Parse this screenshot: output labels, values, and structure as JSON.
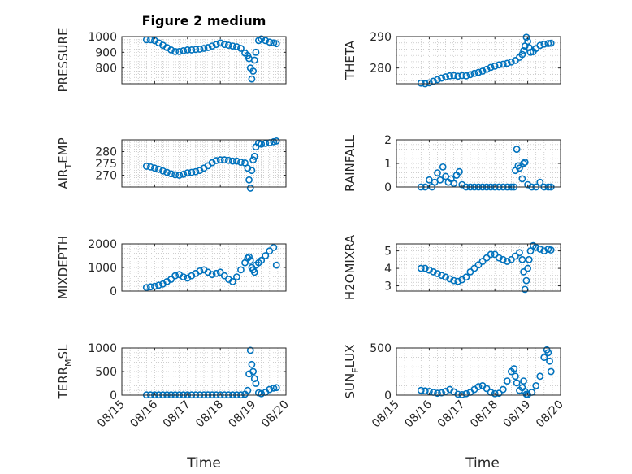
{
  "title": "Figure 2 medium",
  "marker_color": "#0072BD",
  "xlabel": "Time",
  "xticks": [
    "08/15",
    "08/16",
    "08/17",
    "08/18",
    "08/19",
    "08/20"
  ],
  "xrange": [
    "08/15",
    "08/20"
  ],
  "chart_data": [
    {
      "type": "scatter",
      "ylabel": "PRESSURE",
      "ylim": [
        700,
        1000
      ],
      "yticks": [
        800,
        900,
        1000
      ],
      "grid": "minor",
      "x": [
        "08/15 18:00",
        "08/15 21:00",
        "08/16 00:00",
        "08/16 03:00",
        "08/16 06:00",
        "08/16 09:00",
        "08/16 12:00",
        "08/16 15:00",
        "08/16 18:00",
        "08/16 21:00",
        "08/17 00:00",
        "08/17 03:00",
        "08/17 06:00",
        "08/17 09:00",
        "08/17 12:00",
        "08/17 15:00",
        "08/17 18:00",
        "08/17 21:00",
        "08/18 00:00",
        "08/18 03:00",
        "08/18 06:00",
        "08/18 09:00",
        "08/18 12:00",
        "08/18 15:00",
        "08/18 18:00",
        "08/18 20:00",
        "08/18 21:00",
        "08/18 22:00",
        "08/18 23:00",
        "08/19 00:00",
        "08/19 01:00",
        "08/19 02:00",
        "08/19 04:00",
        "08/19 06:00",
        "08/19 09:00",
        "08/19 12:00",
        "08/19 15:00",
        "08/19 17:00"
      ],
      "y": [
        980,
        980,
        975,
        960,
        945,
        930,
        915,
        905,
        905,
        910,
        915,
        915,
        918,
        920,
        925,
        930,
        940,
        950,
        960,
        950,
        945,
        940,
        935,
        925,
        895,
        880,
        860,
        800,
        730,
        780,
        850,
        900,
        975,
        985,
        975,
        965,
        960,
        955
      ]
    },
    {
      "type": "scatter",
      "ylabel": "THETA",
      "ylim": [
        275,
        290
      ],
      "yticks": [
        280,
        290
      ],
      "grid": "minor",
      "x": [
        "08/15 18:00",
        "08/15 21:00",
        "08/16 00:00",
        "08/16 03:00",
        "08/16 06:00",
        "08/16 09:00",
        "08/16 12:00",
        "08/16 15:00",
        "08/16 18:00",
        "08/16 21:00",
        "08/17 00:00",
        "08/17 03:00",
        "08/17 06:00",
        "08/17 09:00",
        "08/17 12:00",
        "08/17 15:00",
        "08/17 18:00",
        "08/17 21:00",
        "08/18 00:00",
        "08/18 03:00",
        "08/18 06:00",
        "08/18 09:00",
        "08/18 12:00",
        "08/18 15:00",
        "08/18 18:00",
        "08/18 20:00",
        "08/18 21:00",
        "08/18 22:00",
        "08/18 23:00",
        "08/19 00:00",
        "08/19 01:00",
        "08/19 02:00",
        "08/19 04:00",
        "08/19 06:00",
        "08/19 09:00",
        "08/19 12:00",
        "08/19 15:00",
        "08/19 17:00"
      ],
      "y": [
        275.2,
        275.0,
        275.3,
        275.8,
        276.3,
        276.8,
        277.2,
        277.5,
        277.6,
        277.4,
        277.6,
        277.5,
        277.9,
        278.3,
        278.6,
        279.0,
        279.6,
        280.2,
        280.6,
        281.0,
        281.2,
        281.5,
        281.9,
        282.4,
        283.4,
        284.3,
        285.5,
        287.0,
        289.8,
        288.5,
        286.5,
        285.0,
        285.2,
        286.2,
        287.2,
        287.6,
        287.8,
        287.9
      ]
    },
    {
      "type": "scatter",
      "ylabel": "AIR_TEMP",
      "ylim": [
        265,
        285
      ],
      "yticks": [
        270,
        275,
        280
      ],
      "grid": "minor",
      "x": [
        "08/15 18:00",
        "08/15 21:00",
        "08/16 00:00",
        "08/16 03:00",
        "08/16 06:00",
        "08/16 09:00",
        "08/16 12:00",
        "08/16 15:00",
        "08/16 18:00",
        "08/16 21:00",
        "08/17 00:00",
        "08/17 03:00",
        "08/17 06:00",
        "08/17 09:00",
        "08/17 12:00",
        "08/17 15:00",
        "08/17 18:00",
        "08/17 21:00",
        "08/18 00:00",
        "08/18 03:00",
        "08/18 06:00",
        "08/18 09:00",
        "08/18 12:00",
        "08/18 15:00",
        "08/18 18:00",
        "08/18 20:00",
        "08/18 21:00",
        "08/18 22:00",
        "08/18 23:00",
        "08/19 00:00",
        "08/19 01:00",
        "08/19 02:00",
        "08/19 04:00",
        "08/19 06:00",
        "08/19 09:00",
        "08/19 12:00",
        "08/19 15:00",
        "08/19 17:00"
      ],
      "y": [
        273.8,
        273.5,
        273.0,
        272.5,
        271.8,
        271.2,
        270.6,
        270.2,
        270.0,
        270.4,
        271.0,
        271.2,
        271.5,
        272.0,
        273.0,
        274.0,
        275.3,
        276.2,
        276.5,
        276.5,
        276.3,
        276.0,
        276.0,
        275.5,
        275.2,
        273.0,
        268.0,
        264.5,
        272.0,
        276.5,
        278.0,
        282.0,
        283.6,
        283.2,
        283.5,
        283.8,
        284.2,
        284.5
      ]
    },
    {
      "type": "scatter",
      "ylabel": "RAINFALL",
      "ylim": [
        0,
        2
      ],
      "yticks": [
        0,
        1,
        2
      ],
      "grid": "minor",
      "x": [
        "08/15 18:00",
        "08/15 21:00",
        "08/16 00:00",
        "08/16 02:00",
        "08/16 04:00",
        "08/16 06:00",
        "08/16 08:00",
        "08/16 10:00",
        "08/16 12:00",
        "08/16 14:00",
        "08/16 16:00",
        "08/16 18:00",
        "08/16 20:00",
        "08/16 22:00",
        "08/17 00:00",
        "08/17 03:00",
        "08/17 06:00",
        "08/17 09:00",
        "08/17 12:00",
        "08/17 15:00",
        "08/17 18:00",
        "08/17 21:00",
        "08/18 00:00",
        "08/18 03:00",
        "08/18 06:00",
        "08/18 09:00",
        "08/18 12:00",
        "08/18 14:00",
        "08/18 15:00",
        "08/18 16:00",
        "08/18 17:00",
        "08/18 18:00",
        "08/18 20:00",
        "08/18 21:00",
        "08/18 22:00",
        "08/19 00:00",
        "08/19 03:00",
        "08/19 06:00",
        "08/19 09:00",
        "08/19 12:00",
        "08/19 15:00",
        "08/19 17:00"
      ],
      "y": [
        0,
        0,
        0.3,
        0,
        0.2,
        0.6,
        0.3,
        0.85,
        0.45,
        0.2,
        0.35,
        0.15,
        0.5,
        0.65,
        0.1,
        0,
        0,
        0,
        0,
        0,
        0,
        0,
        0,
        0,
        0,
        0,
        0,
        0,
        0.7,
        1.6,
        0.9,
        0.8,
        0.35,
        1.0,
        1.05,
        0.1,
        0,
        0,
        0.2,
        0,
        0,
        0
      ]
    },
    {
      "type": "scatter",
      "ylabel": "MIXDEPTH",
      "ylim": [
        0,
        2000
      ],
      "yticks": [
        0,
        1000,
        2000
      ],
      "grid": "minor",
      "x": [
        "08/15 18:00",
        "08/15 21:00",
        "08/16 00:00",
        "08/16 03:00",
        "08/16 06:00",
        "08/16 09:00",
        "08/16 12:00",
        "08/16 15:00",
        "08/16 18:00",
        "08/16 21:00",
        "08/17 00:00",
        "08/17 03:00",
        "08/17 06:00",
        "08/17 09:00",
        "08/17 12:00",
        "08/17 15:00",
        "08/17 18:00",
        "08/17 21:00",
        "08/18 00:00",
        "08/18 03:00",
        "08/18 06:00",
        "08/18 09:00",
        "08/18 12:00",
        "08/18 15:00",
        "08/18 18:00",
        "08/18 20:00",
        "08/18 21:00",
        "08/18 22:00",
        "08/18 23:00",
        "08/19 00:00",
        "08/19 01:00",
        "08/19 02:00",
        "08/19 04:00",
        "08/19 06:00",
        "08/19 09:00",
        "08/19 12:00",
        "08/19 15:00",
        "08/19 17:00"
      ],
      "y": [
        150,
        180,
        200,
        250,
        300,
        400,
        500,
        650,
        700,
        600,
        550,
        650,
        750,
        850,
        900,
        800,
        700,
        750,
        800,
        650,
        500,
        400,
        600,
        900,
        1200,
        1400,
        1450,
        1300,
        1000,
        900,
        800,
        1100,
        1200,
        1300,
        1500,
        1700,
        1850,
        1100
      ]
    },
    {
      "type": "scatter",
      "ylabel": "H2OMIXRA",
      "ylim": [
        2.7,
        5.4
      ],
      "yticks": [
        3,
        4,
        5
      ],
      "grid": "minor",
      "x": [
        "08/15 18:00",
        "08/15 21:00",
        "08/16 00:00",
        "08/16 03:00",
        "08/16 06:00",
        "08/16 09:00",
        "08/16 12:00",
        "08/16 15:00",
        "08/16 18:00",
        "08/16 21:00",
        "08/17 00:00",
        "08/17 03:00",
        "08/17 06:00",
        "08/17 09:00",
        "08/17 12:00",
        "08/17 15:00",
        "08/17 18:00",
        "08/17 21:00",
        "08/18 00:00",
        "08/18 03:00",
        "08/18 06:00",
        "08/18 09:00",
        "08/18 12:00",
        "08/18 15:00",
        "08/18 18:00",
        "08/18 20:00",
        "08/18 21:00",
        "08/18 22:00",
        "08/18 23:00",
        "08/19 00:00",
        "08/19 01:00",
        "08/19 02:00",
        "08/19 04:00",
        "08/19 06:00",
        "08/19 09:00",
        "08/19 12:00",
        "08/19 15:00",
        "08/19 17:00"
      ],
      "y": [
        4.0,
        4.0,
        3.9,
        3.8,
        3.7,
        3.6,
        3.5,
        3.4,
        3.3,
        3.25,
        3.35,
        3.5,
        3.8,
        4.0,
        4.2,
        4.4,
        4.6,
        4.8,
        4.8,
        4.6,
        4.5,
        4.4,
        4.5,
        4.7,
        4.9,
        4.5,
        3.8,
        2.8,
        3.3,
        4.0,
        4.5,
        5.0,
        5.3,
        5.2,
        5.1,
        5.0,
        5.1,
        5.05
      ]
    },
    {
      "type": "scatter",
      "ylabel": "TERR_MSL",
      "ylim": [
        0,
        1000
      ],
      "yticks": [
        0,
        500,
        1000
      ],
      "grid": "minor",
      "x": [
        "08/15 18:00",
        "08/15 21:00",
        "08/16 00:00",
        "08/16 03:00",
        "08/16 06:00",
        "08/16 09:00",
        "08/16 12:00",
        "08/16 15:00",
        "08/16 18:00",
        "08/16 21:00",
        "08/17 00:00",
        "08/17 03:00",
        "08/17 06:00",
        "08/17 09:00",
        "08/17 12:00",
        "08/17 15:00",
        "08/17 18:00",
        "08/17 21:00",
        "08/18 00:00",
        "08/18 03:00",
        "08/18 06:00",
        "08/18 09:00",
        "08/18 12:00",
        "08/18 15:00",
        "08/18 18:00",
        "08/18 20:00",
        "08/18 21:00",
        "08/18 22:00",
        "08/18 23:00",
        "08/19 00:00",
        "08/19 01:00",
        "08/19 02:00",
        "08/19 04:00",
        "08/19 06:00",
        "08/19 09:00",
        "08/19 12:00",
        "08/19 15:00",
        "08/19 17:00"
      ],
      "y": [
        5,
        5,
        5,
        5,
        5,
        5,
        5,
        5,
        5,
        5,
        5,
        5,
        5,
        5,
        5,
        5,
        5,
        5,
        5,
        5,
        5,
        5,
        5,
        5,
        20,
        100,
        450,
        950,
        650,
        500,
        350,
        250,
        50,
        30,
        60,
        120,
        150,
        160
      ]
    },
    {
      "type": "scatter",
      "ylabel": "SUN_FLUX",
      "ylim": [
        0,
        500
      ],
      "yticks": [
        0,
        500
      ],
      "grid": "minor",
      "x": [
        "08/15 18:00",
        "08/15 21:00",
        "08/16 00:00",
        "08/16 03:00",
        "08/16 06:00",
        "08/16 09:00",
        "08/16 12:00",
        "08/16 15:00",
        "08/16 18:00",
        "08/16 21:00",
        "08/17 00:00",
        "08/17 03:00",
        "08/17 06:00",
        "08/17 09:00",
        "08/17 12:00",
        "08/17 15:00",
        "08/17 18:00",
        "08/17 21:00",
        "08/18 00:00",
        "08/18 03:00",
        "08/18 06:00",
        "08/18 09:00",
        "08/18 12:00",
        "08/18 14:00",
        "08/18 15:00",
        "08/18 16:00",
        "08/18 18:00",
        "08/18 20:00",
        "08/18 21:00",
        "08/18 22:00",
        "08/18 23:00",
        "08/19 00:00",
        "08/19 03:00",
        "08/19 06:00",
        "08/19 09:00",
        "08/19 12:00",
        "08/19 14:00",
        "08/19 15:00",
        "08/19 16:00",
        "08/19 17:00"
      ],
      "y": [
        50,
        45,
        40,
        30,
        20,
        25,
        40,
        60,
        35,
        10,
        5,
        15,
        30,
        60,
        90,
        100,
        70,
        30,
        15,
        20,
        60,
        150,
        250,
        280,
        200,
        130,
        50,
        80,
        150,
        40,
        10,
        5,
        30,
        100,
        200,
        400,
        480,
        450,
        360,
        250
      ]
    }
  ]
}
